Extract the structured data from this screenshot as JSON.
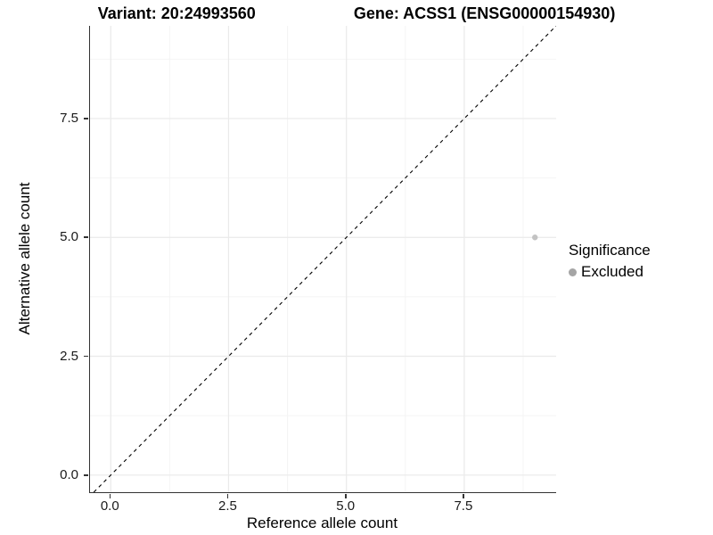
{
  "chart_data": {
    "type": "scatter",
    "title_left": "Variant: 20:24993560",
    "title_right": "Gene: ACSS1 (ENSG00000154930)",
    "xlabel": "Reference allele count",
    "ylabel": "Alternative allele count",
    "x_ticks": {
      "values": [
        0,
        2.5,
        5,
        7.5
      ],
      "labels": [
        "0.0",
        "2.5",
        "5.0",
        "7.5"
      ]
    },
    "y_ticks": {
      "values": [
        0,
        2.5,
        5,
        7.5
      ],
      "labels": [
        "0.0",
        "2.5",
        "5.0",
        "7.5"
      ]
    },
    "xlim": [
      -0.44,
      9.45
    ],
    "ylim": [
      -0.36,
      9.45
    ],
    "minor_tick_step": 1.25,
    "grid": {
      "show": true,
      "major_color": "#eaeaea",
      "minor_color": "#f4f4f4"
    },
    "reference_line": {
      "slope": 1,
      "intercept": 0,
      "style": "dashed",
      "color": "#000000"
    },
    "points": [
      {
        "x": 9,
        "y": 5,
        "series": "Excluded"
      }
    ],
    "point_color": "#c3c3c3",
    "legend": {
      "title": "Significance",
      "position": "right",
      "entries": [
        {
          "label": "Excluded",
          "color": "#a5a5a5"
        }
      ]
    },
    "colors": {
      "axis": "#333333",
      "tick": "#333333",
      "text": "#000000"
    }
  }
}
